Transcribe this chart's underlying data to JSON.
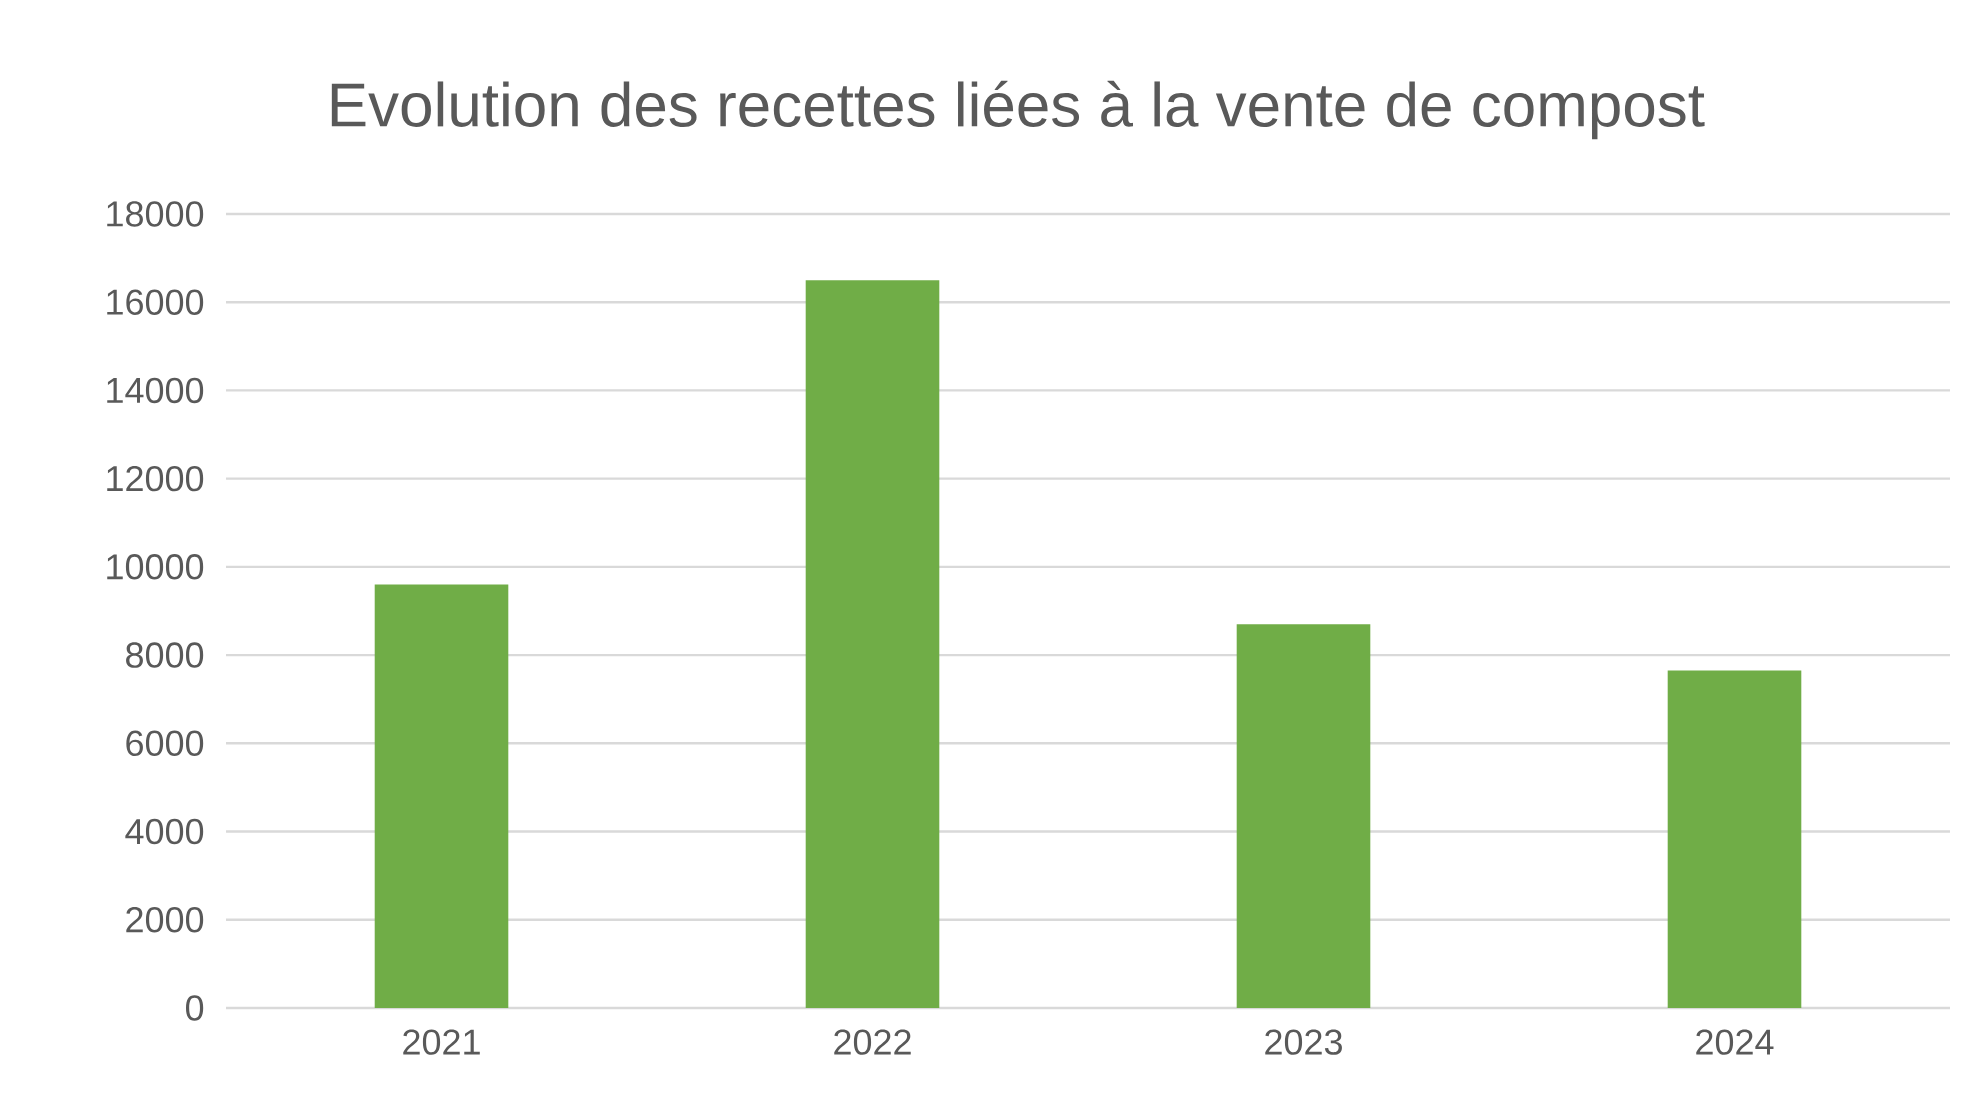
{
  "chart_data": {
    "type": "bar",
    "title": "Evolution des recettes liées à la vente de compost",
    "categories": [
      "2021",
      "2022",
      "2023",
      "2024"
    ],
    "values": [
      9600,
      16500,
      8700,
      7650
    ],
    "color": "#70ad47",
    "ylim": [
      0,
      18000
    ],
    "yticks": [
      0,
      2000,
      4000,
      6000,
      8000,
      10000,
      12000,
      14000,
      16000,
      18000
    ],
    "grid": "y"
  }
}
